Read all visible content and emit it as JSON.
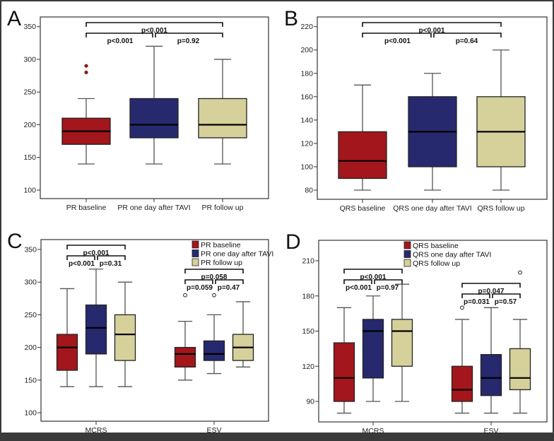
{
  "colors": {
    "baseline": "#A3161B",
    "one_day": "#27296F",
    "follow_up": "#D6D09B",
    "outline": "#1a1a1a",
    "whisker": "#555555",
    "outer_border": "#3a3a3a"
  },
  "chart_data": [
    {
      "type": "box",
      "panel": "A",
      "title": "A",
      "xlabel": "",
      "ylabel": "",
      "ylim": [
        90,
        365
      ],
      "yticks": [
        100,
        150,
        200,
        250,
        300,
        350
      ],
      "categories": [
        "PR baseline",
        "PR one day after TAVI",
        "PR follow up"
      ],
      "boxes": [
        {
          "category": "PR baseline",
          "color_key": "baseline",
          "min": 140,
          "q1": 170,
          "median": 190,
          "q3": 210,
          "max": 240,
          "outliers": [
            280,
            290
          ],
          "outlier_style": "filled"
        },
        {
          "category": "PR one day after TAVI",
          "color_key": "one_day",
          "min": 140,
          "q1": 180,
          "median": 200,
          "q3": 240,
          "max": 320,
          "outliers": []
        },
        {
          "category": "PR follow up",
          "color_key": "follow_up",
          "min": 140,
          "q1": 180,
          "median": 200,
          "q3": 240,
          "max": 300,
          "outliers": []
        }
      ],
      "annotations": [
        {
          "from": 0,
          "to": 2,
          "level": 2,
          "label": "p<0.001"
        },
        {
          "from": 0,
          "to": 1,
          "level": 1,
          "label": "p<0.001"
        },
        {
          "from": 1,
          "to": 2,
          "level": 1,
          "label": "p=0.92"
        }
      ],
      "legend": null,
      "grid": false
    },
    {
      "type": "box",
      "panel": "B",
      "title": "B",
      "xlabel": "",
      "ylabel": "",
      "ylim": [
        75,
        228
      ],
      "yticks": [
        80,
        100,
        120,
        140,
        160,
        180,
        200,
        220
      ],
      "categories": [
        "QRS baseline",
        "QRS one day after TAVI",
        "QRS follow up"
      ],
      "boxes": [
        {
          "category": "QRS baseline",
          "color_key": "baseline",
          "min": 80,
          "q1": 90,
          "median": 105,
          "q3": 130,
          "max": 170,
          "outliers": []
        },
        {
          "category": "QRS one day after TAVI",
          "color_key": "one_day",
          "min": 80,
          "q1": 100,
          "median": 130,
          "q3": 160,
          "max": 180,
          "outliers": []
        },
        {
          "category": "QRS follow up",
          "color_key": "follow_up",
          "min": 80,
          "q1": 100,
          "median": 130,
          "q3": 160,
          "max": 200,
          "outliers": []
        }
      ],
      "annotations": [
        {
          "from": 0,
          "to": 2,
          "level": 2,
          "label": "p<0.001"
        },
        {
          "from": 0,
          "to": 1,
          "level": 1,
          "label": "p<0.001"
        },
        {
          "from": 1,
          "to": 2,
          "level": 1,
          "label": "p=0.64"
        }
      ],
      "legend": null,
      "grid": false
    },
    {
      "type": "box",
      "panel": "C",
      "title": "C",
      "xlabel": "",
      "ylabel": "",
      "ylim": [
        90,
        365
      ],
      "yticks": [
        100,
        150,
        200,
        250,
        300,
        350
      ],
      "categories": [
        "MCRS",
        "ESV"
      ],
      "series": [
        "PR baseline",
        "PR one day after TAVI",
        "PR follow up"
      ],
      "groups": [
        {
          "category": "MCRS",
          "boxes": [
            {
              "series": "PR baseline",
              "color_key": "baseline",
              "min": 140,
              "q1": 165,
              "median": 200,
              "q3": 220,
              "max": 290,
              "outliers": []
            },
            {
              "series": "PR one day after TAVI",
              "color_key": "one_day",
              "min": 140,
              "q1": 190,
              "median": 230,
              "q3": 265,
              "max": 320,
              "outliers": []
            },
            {
              "series": "PR follow up",
              "color_key": "follow_up",
              "min": 140,
              "q1": 180,
              "median": 220,
              "q3": 250,
              "max": 300,
              "outliers": []
            }
          ],
          "annotations": [
            {
              "from": 0,
              "to": 2,
              "level": 2,
              "label": "p<0.001"
            },
            {
              "from": 0,
              "to": 1,
              "level": 1,
              "label": "p<0.001"
            },
            {
              "from": 1,
              "to": 2,
              "level": 1,
              "label": "p=0.31"
            }
          ]
        },
        {
          "category": "ESV",
          "boxes": [
            {
              "series": "PR baseline",
              "color_key": "baseline",
              "min": 150,
              "q1": 170,
              "median": 190,
              "q3": 200,
              "max": 240,
              "outliers": [
                280
              ]
            },
            {
              "series": "PR one day after TAVI",
              "color_key": "one_day",
              "min": 160,
              "q1": 180,
              "median": 190,
              "q3": 210,
              "max": 250,
              "outliers": [
                280
              ]
            },
            {
              "series": "PR follow up",
              "color_key": "follow_up",
              "min": 170,
              "q1": 180,
              "median": 200,
              "q3": 220,
              "max": 270,
              "outliers": []
            }
          ],
          "annotations": [
            {
              "from": 0,
              "to": 2,
              "level": 2,
              "label": "p=0.058"
            },
            {
              "from": 0,
              "to": 1,
              "level": 1,
              "label": "p=0.059"
            },
            {
              "from": 1,
              "to": 2,
              "level": 1,
              "label": "p=0.47"
            }
          ]
        }
      ],
      "legend": {
        "position": "top-right",
        "entries": [
          {
            "label": "PR baseline",
            "color_key": "baseline"
          },
          {
            "label": "PR one day after TAVI",
            "color_key": "one_day"
          },
          {
            "label": "PR follow up",
            "color_key": "follow_up"
          }
        ]
      },
      "grid": false
    },
    {
      "type": "box",
      "panel": "D",
      "title": "D",
      "xlabel": "",
      "ylabel": "",
      "ylim": [
        72,
        227
      ],
      "yticks": [
        90,
        120,
        150,
        180,
        210
      ],
      "categories": [
        "MCRS",
        "ESV"
      ],
      "series": [
        "QRS baseline",
        "QRS one day after TAVI",
        "QRS follow up"
      ],
      "groups": [
        {
          "category": "MCRS",
          "boxes": [
            {
              "series": "QRS baseline",
              "color_key": "baseline",
              "min": 80,
              "q1": 90,
              "median": 110,
              "q3": 140,
              "max": 170,
              "outliers": []
            },
            {
              "series": "QRS one day after TAVI",
              "color_key": "one_day",
              "min": 90,
              "q1": 110,
              "median": 150,
              "q3": 160,
              "max": 180,
              "outliers": []
            },
            {
              "series": "QRS follow up",
              "color_key": "follow_up",
              "min": 90,
              "q1": 120,
              "median": 150,
              "q3": 160,
              "max": 190,
              "outliers": []
            }
          ],
          "annotations": [
            {
              "from": 0,
              "to": 2,
              "level": 2,
              "label": "p<0.001"
            },
            {
              "from": 0,
              "to": 1,
              "level": 1,
              "label": "p<0.001"
            },
            {
              "from": 1,
              "to": 2,
              "level": 1,
              "label": "p=0.97"
            }
          ]
        },
        {
          "category": "ESV",
          "boxes": [
            {
              "series": "QRS baseline",
              "color_key": "baseline",
              "min": 80,
              "q1": 90,
              "median": 100,
              "q3": 120,
              "max": 160,
              "outliers": [
                170
              ]
            },
            {
              "series": "QRS one day after TAVI",
              "color_key": "one_day",
              "min": 80,
              "q1": 95,
              "median": 110,
              "q3": 130,
              "max": 170,
              "outliers": []
            },
            {
              "series": "QRS follow up",
              "color_key": "follow_up",
              "min": 80,
              "q1": 100,
              "median": 110,
              "q3": 135,
              "max": 160,
              "outliers": [
                200
              ]
            }
          ],
          "annotations": [
            {
              "from": 0,
              "to": 2,
              "level": 2,
              "label": "p=0.047"
            },
            {
              "from": 0,
              "to": 1,
              "level": 1,
              "label": "p=0.031"
            },
            {
              "from": 1,
              "to": 2,
              "level": 1,
              "label": "p=0.57"
            }
          ]
        }
      ],
      "legend": {
        "position": "top-center",
        "entries": [
          {
            "label": "QRS baseline",
            "color_key": "baseline"
          },
          {
            "label": "QRS one day after TAVI",
            "color_key": "one_day"
          },
          {
            "label": "QRS follow up",
            "color_key": "follow_up"
          }
        ]
      },
      "grid": false
    }
  ]
}
